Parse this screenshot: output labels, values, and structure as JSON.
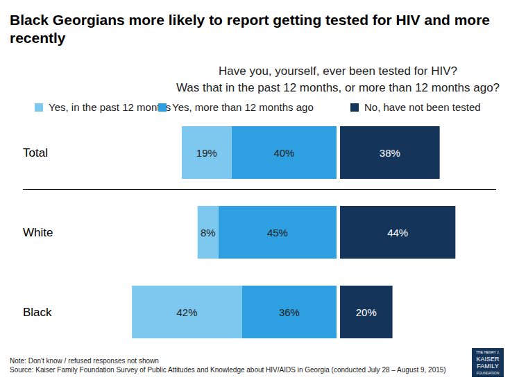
{
  "chart_data": {
    "type": "bar",
    "orientation": "horizontal",
    "stacked": true,
    "data_labels": true,
    "tick_labels": "y",
    "grid": false,
    "legend": "top",
    "title": "Black Georgians more likely to report getting tested for HIV and more recently",
    "subtitle": [
      "Have you, yourself, ever been tested for HIV?",
      "Was that in the past 12 months, or more than 12 months ago?"
    ],
    "categories": [
      "Total",
      "White",
      "Black"
    ],
    "series": [
      {
        "name": "Yes, in the past 12 months",
        "color": "#7dc8ee",
        "values": [
          19,
          8,
          42
        ],
        "value_labels": [
          "19%",
          "8%",
          "42%"
        ]
      },
      {
        "name": "Yes, more than 12 months ago",
        "color": "#2e9fe0",
        "values": [
          40,
          45,
          36
        ],
        "value_labels": [
          "40%",
          "45%",
          "36%"
        ]
      },
      {
        "name": "No, have not been tested",
        "color": "#14345a",
        "values": [
          38,
          44,
          20
        ],
        "value_labels": [
          "38%",
          "44%",
          "20%"
        ]
      }
    ],
    "notes": [
      "Note: Don't know / refused responses not shown",
      "Source: Kaiser Family Foundation Survey of Public Attitudes and Knowledge about HIV/AIDS in Georgia (conducted July 28 – August 9, 2015)"
    ],
    "logo": [
      "THE HENRY J.",
      "KAISER",
      "FAMILY",
      "FOUNDATION"
    ]
  }
}
